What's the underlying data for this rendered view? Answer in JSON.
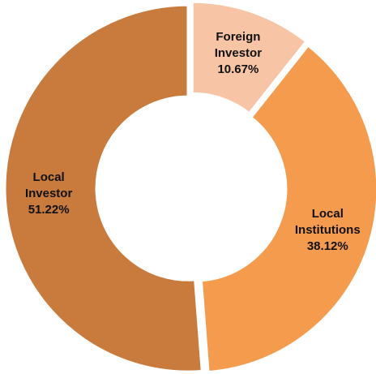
{
  "chart_data": {
    "type": "pie",
    "categories": [
      "Foreign Investor",
      "Local Institutions",
      "Local Investor"
    ],
    "values": [
      10.67,
      38.12,
      51.22
    ],
    "value_labels": [
      "10.67%",
      "38.12%",
      "51.22%"
    ],
    "colors": [
      "#f8c4a6",
      "#f59b4e",
      "#c97b3d"
    ]
  }
}
